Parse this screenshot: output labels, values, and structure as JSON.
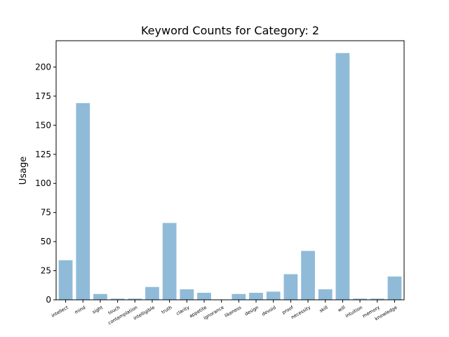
{
  "chart_data": {
    "type": "bar",
    "title": "Keyword Counts for Category: 2",
    "xlabel": "",
    "ylabel": "Usage",
    "ylim": [
      0,
      222.6
    ],
    "yticks": [
      0,
      25,
      50,
      75,
      100,
      125,
      150,
      175,
      200
    ],
    "grid": false,
    "bar_color": "#8fbbd9",
    "categories": [
      "intellect",
      "mind",
      "sight",
      "touch",
      "contemplation",
      "intelligible",
      "truth",
      "clarity",
      "appetite",
      "ignorance",
      "likeness",
      "design",
      "devoid",
      "proof",
      "necessity",
      "skill",
      "will",
      "intuition",
      "memory",
      "knowledge"
    ],
    "values": [
      34,
      169,
      5,
      1,
      1,
      11,
      66,
      9,
      6,
      0,
      5,
      6,
      7,
      22,
      42,
      9,
      212,
      1,
      1,
      20
    ]
  }
}
